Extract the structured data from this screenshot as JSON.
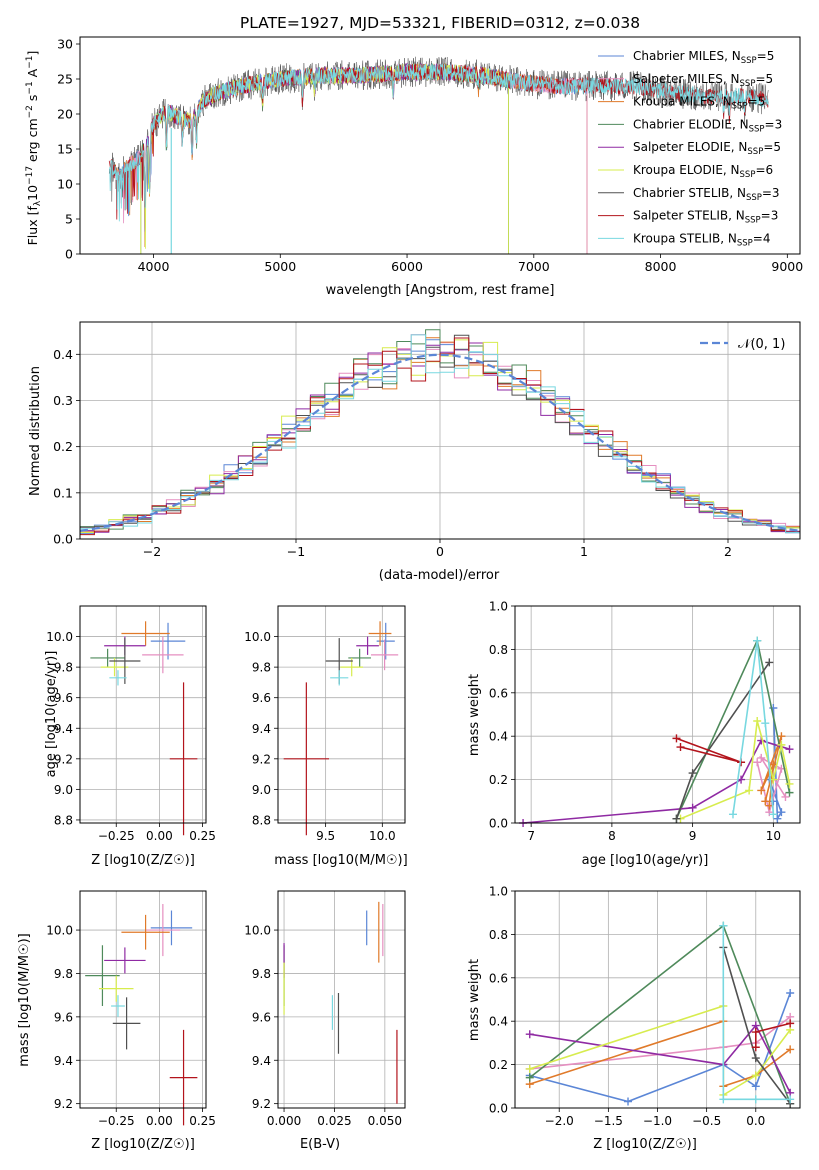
{
  "chart_data": [
    {
      "id": "spectrum",
      "type": "line",
      "title": "PLATE=1927, MJD=53321, FIBERID=0312, z=0.038",
      "xlabel": "wavelength [Angstrom, rest frame]",
      "ylabel": "Flux [f_λ10^-17 erg cm^-2 s^-1 A^-1]",
      "xlim": [
        3420,
        9100
      ],
      "ylim": [
        0,
        31
      ],
      "xticks": [
        4000,
        5000,
        6000,
        7000,
        8000,
        9000
      ],
      "yticks": [
        0,
        5,
        10,
        15,
        20,
        25,
        30
      ],
      "grid": false,
      "legend_position": "right",
      "continuum": {
        "x": [
          3670,
          3720,
          3800,
          3900,
          4000,
          4100,
          4200,
          4300,
          4400,
          4500,
          4700,
          5000,
          5300,
          5600,
          6000,
          6300,
          6600,
          6900,
          7200,
          7500,
          7800,
          8100,
          8400,
          8700,
          8850
        ],
        "y": [
          12.5,
          11.0,
          12.5,
          14.0,
          18.5,
          20.5,
          19.5,
          19.0,
          22.0,
          23.0,
          24.0,
          25.0,
          25.5,
          25.5,
          26.0,
          26.0,
          25.5,
          24.5,
          24.0,
          24.0,
          24.0,
          23.0,
          22.5,
          22.5,
          22.0
        ]
      },
      "series": [
        {
          "name": "Chabrier MILES, N_SSP=5",
          "color": "#5b86d6",
          "x_range": [
            3700,
            7420
          ]
        },
        {
          "name": "Salpeter MILES, N_SSP=5",
          "color": "#e58fc0",
          "x_range": [
            3700,
            7420
          ]
        },
        {
          "name": "Kroupa MILES, N_SSP=5",
          "color": "#e07a2a",
          "x_range": [
            3700,
            7420
          ]
        },
        {
          "name": "Chabrier ELODIE, N_SSP=3",
          "color": "#4f8a5b",
          "x_range": [
            3900,
            6800
          ]
        },
        {
          "name": "Salpeter ELODIE, N_SSP=5",
          "color": "#8f2aa3",
          "x_range": [
            3900,
            6800
          ]
        },
        {
          "name": "Kroupa ELODIE, N_SSP=6",
          "color": "#d7ec4e",
          "x_range": [
            3900,
            6800
          ]
        },
        {
          "name": "Chabrier STELIB, N_SSP=3",
          "color": "#505050",
          "x_range": [
            3650,
            8850
          ]
        },
        {
          "name": "Salpeter STELIB, N_SSP=3",
          "color": "#b3141c",
          "x_range": [
            3650,
            8850
          ]
        },
        {
          "name": "Kroupa STELIB, N_SSP=4",
          "color": "#78d8e0",
          "x_range": [
            3650,
            8850
          ]
        }
      ]
    },
    {
      "id": "residuals",
      "type": "histogram",
      "xlabel": "(data-model)/error",
      "ylabel": "Normed distribution",
      "xlim": [
        -2.5,
        2.5
      ],
      "ylim": [
        0,
        0.47
      ],
      "xticks": [
        -2,
        -1,
        0,
        1,
        2
      ],
      "yticks": [
        0.0,
        0.1,
        0.2,
        0.3,
        0.4
      ],
      "grid": true,
      "legend_position": "top-right",
      "gaussian_label": "𝒩(0, 1)",
      "bin_width": 0.1
    },
    {
      "id": "age-vs-Z",
      "type": "scatter",
      "xlabel": "Z [log10(Z/Z☉)]",
      "ylabel": "age  [log10(age/yr)]",
      "xlim": [
        -0.46,
        0.27
      ],
      "ylim": [
        8.78,
        10.2
      ],
      "xticks": [
        -0.25,
        0.0,
        0.25
      ],
      "yticks": [
        8.8,
        9.0,
        9.2,
        9.4,
        9.6,
        9.8,
        10.0
      ],
      "grid": true,
      "points": [
        {
          "x": 0.05,
          "y": 9.97,
          "dx": 0.1,
          "dy": 0.12,
          "color": "#5b86d6"
        },
        {
          "x": 0.02,
          "y": 9.88,
          "dx": 0.12,
          "dy": 0.12,
          "color": "#e58fc0"
        },
        {
          "x": -0.08,
          "y": 10.02,
          "dx": 0.14,
          "dy": 0.08,
          "color": "#e07a2a"
        },
        {
          "x": -0.3,
          "y": 9.86,
          "dx": 0.1,
          "dy": 0.06,
          "color": "#4f8a5b"
        },
        {
          "x": -0.2,
          "y": 9.94,
          "dx": 0.12,
          "dy": 0.06,
          "color": "#8f2aa3"
        },
        {
          "x": -0.26,
          "y": 9.8,
          "dx": 0.08,
          "dy": 0.06,
          "color": "#d7ec4e"
        },
        {
          "x": -0.2,
          "y": 9.84,
          "dx": 0.09,
          "dy": 0.15,
          "color": "#505050"
        },
        {
          "x": 0.14,
          "y": 9.2,
          "dx": 0.08,
          "dy": 0.5,
          "color": "#b3141c"
        },
        {
          "x": -0.24,
          "y": 9.73,
          "dx": 0.05,
          "dy": 0.05,
          "color": "#78d8e0"
        }
      ]
    },
    {
      "id": "age-vs-mass",
      "type": "scatter",
      "xlabel": "mass [log10(M/M☉)]",
      "ylabel": "",
      "xlim": [
        9.08,
        10.2
      ],
      "ylim": [
        8.78,
        10.2
      ],
      "xticks": [
        9.5,
        10.0
      ],
      "yticks": [
        8.8,
        9.0,
        9.2,
        9.4,
        9.6,
        9.8,
        10.0
      ],
      "grid": true,
      "points": [
        {
          "x": 10.03,
          "y": 9.97,
          "dx": 0.08,
          "dy": 0.12,
          "color": "#5b86d6"
        },
        {
          "x": 10.02,
          "y": 9.88,
          "dx": 0.12,
          "dy": 0.1,
          "color": "#e58fc0"
        },
        {
          "x": 9.98,
          "y": 10.02,
          "dx": 0.1,
          "dy": 0.08,
          "color": "#e07a2a"
        },
        {
          "x": 9.8,
          "y": 9.86,
          "dx": 0.1,
          "dy": 0.06,
          "color": "#4f8a5b"
        },
        {
          "x": 9.87,
          "y": 9.94,
          "dx": 0.1,
          "dy": 0.06,
          "color": "#8f2aa3"
        },
        {
          "x": 9.73,
          "y": 9.8,
          "dx": 0.1,
          "dy": 0.06,
          "color": "#d7ec4e"
        },
        {
          "x": 9.62,
          "y": 9.84,
          "dx": 0.12,
          "dy": 0.15,
          "color": "#505050"
        },
        {
          "x": 9.33,
          "y": 9.2,
          "dx": 0.2,
          "dy": 0.5,
          "color": "#b3141c"
        },
        {
          "x": 9.62,
          "y": 9.73,
          "dx": 0.08,
          "dy": 0.05,
          "color": "#78d8e0"
        }
      ]
    },
    {
      "id": "weight-vs-age",
      "type": "line",
      "xlabel": "age  [log10(age/yr)]",
      "ylabel": "mass weight",
      "xlim": [
        6.8,
        10.33
      ],
      "ylim": [
        0.0,
        1.0
      ],
      "xticks": [
        7,
        8,
        9,
        10
      ],
      "yticks": [
        0.0,
        0.2,
        0.4,
        0.6,
        0.8,
        1.0
      ],
      "grid": true,
      "series": [
        {
          "color": "#5b86d6",
          "x": [
            10.0,
            10.05,
            10.1,
            9.95,
            10.0
          ],
          "y": [
            0.53,
            0.02,
            0.05,
            0.2,
            0.1
          ]
        },
        {
          "color": "#e58fc0",
          "x": [
            9.8,
            9.95,
            10.1,
            9.85,
            10.15
          ],
          "y": [
            0.28,
            0.05,
            0.25,
            0.3,
            0.12
          ]
        },
        {
          "color": "#e07a2a",
          "x": [
            9.9,
            10.1,
            9.85,
            10.0,
            9.95
          ],
          "y": [
            0.1,
            0.4,
            0.15,
            0.27,
            0.08
          ]
        },
        {
          "color": "#4f8a5b",
          "x": [
            8.8,
            9.8,
            10.2
          ],
          "y": [
            0.02,
            0.84,
            0.14
          ]
        },
        {
          "color": "#8f2aa3",
          "x": [
            6.9,
            9.0,
            9.6,
            9.85,
            10.2
          ],
          "y": [
            0.0,
            0.07,
            0.2,
            0.38,
            0.34
          ]
        },
        {
          "color": "#d7ec4e",
          "x": [
            8.85,
            9.7,
            9.8,
            10.0,
            10.1,
            10.2
          ],
          "y": [
            0.02,
            0.15,
            0.47,
            0.2,
            0.36,
            0.18
          ]
        },
        {
          "color": "#505050",
          "x": [
            8.8,
            9.0,
            9.95
          ],
          "y": [
            0.02,
            0.23,
            0.74
          ]
        },
        {
          "color": "#b3141c",
          "x": [
            8.8,
            9.6,
            8.85
          ],
          "y": [
            0.39,
            0.28,
            0.35
          ]
        },
        {
          "color": "#78d8e0",
          "x": [
            9.5,
            9.8,
            9.9,
            10.0
          ],
          "y": [
            0.04,
            0.84,
            0.46,
            0.04
          ]
        }
      ]
    },
    {
      "id": "mass-vs-Z",
      "type": "scatter",
      "xlabel": "Z [log10(Z/Z☉)]",
      "ylabel": "mass [log10(M/M☉)]",
      "xlim": [
        -0.46,
        0.27
      ],
      "ylim": [
        9.18,
        10.18
      ],
      "xticks": [
        -0.25,
        0.0,
        0.25
      ],
      "yticks": [
        9.2,
        9.4,
        9.6,
        9.8,
        10.0
      ],
      "grid": true,
      "points": [
        {
          "x": 0.07,
          "y": 10.01,
          "dx": 0.12,
          "dy": 0.08,
          "color": "#5b86d6"
        },
        {
          "x": 0.02,
          "y": 10.0,
          "dx": 0.1,
          "dy": 0.12,
          "color": "#e58fc0"
        },
        {
          "x": -0.08,
          "y": 9.99,
          "dx": 0.14,
          "dy": 0.08,
          "color": "#e07a2a"
        },
        {
          "x": -0.33,
          "y": 9.79,
          "dx": 0.1,
          "dy": 0.14,
          "color": "#4f8a5b"
        },
        {
          "x": -0.2,
          "y": 9.86,
          "dx": 0.12,
          "dy": 0.06,
          "color": "#8f2aa3"
        },
        {
          "x": -0.25,
          "y": 9.73,
          "dx": 0.1,
          "dy": 0.06,
          "color": "#d7ec4e"
        },
        {
          "x": -0.19,
          "y": 9.57,
          "dx": 0.08,
          "dy": 0.12,
          "color": "#505050"
        },
        {
          "x": 0.14,
          "y": 9.32,
          "dx": 0.08,
          "dy": 0.22,
          "color": "#b3141c"
        },
        {
          "x": -0.24,
          "y": 9.65,
          "dx": 0.04,
          "dy": 0.05,
          "color": "#78d8e0"
        }
      ]
    },
    {
      "id": "mass-vs-ebv",
      "type": "scatter",
      "xlabel": "E(B-V)",
      "ylabel": "",
      "xlim": [
        -0.003,
        0.06
      ],
      "ylim": [
        9.18,
        10.18
      ],
      "xticks": [
        0.0,
        0.025,
        0.05
      ],
      "ytick_labels_x": [
        "0.000",
        "0.025",
        "0.050"
      ],
      "yticks": [
        9.2,
        9.4,
        9.6,
        9.8,
        10.0
      ],
      "grid": true,
      "points": [
        {
          "x": 0.041,
          "y": 10.01,
          "dx": 0,
          "dy": 0.08,
          "color": "#5b86d6"
        },
        {
          "x": 0.049,
          "y": 10.0,
          "dx": 0,
          "dy": 0.12,
          "color": "#e58fc0"
        },
        {
          "x": 0.047,
          "y": 9.99,
          "dx": 0,
          "dy": 0.14,
          "color": "#e07a2a"
        },
        {
          "x": 0.0,
          "y": 9.79,
          "dx": 0,
          "dy": 0.14,
          "color": "#4f8a5b"
        },
        {
          "x": 0.0,
          "y": 9.86,
          "dx": 0,
          "dy": 0.08,
          "color": "#8f2aa3"
        },
        {
          "x": 0.0,
          "y": 9.73,
          "dx": 0,
          "dy": 0.12,
          "color": "#d7ec4e"
        },
        {
          "x": 0.027,
          "y": 9.57,
          "dx": 0,
          "dy": 0.14,
          "color": "#505050"
        },
        {
          "x": 0.056,
          "y": 9.37,
          "dx": 0,
          "dy": 0.17,
          "color": "#b3141c"
        },
        {
          "x": 0.024,
          "y": 9.62,
          "dx": 0,
          "dy": 0.08,
          "color": "#78d8e0"
        }
      ]
    },
    {
      "id": "weight-vs-Z",
      "type": "line",
      "xlabel": "Z [log10(Z/Z☉)]",
      "ylabel": "mass weight",
      "xlim": [
        -2.45,
        0.45
      ],
      "ylim": [
        0.0,
        1.0
      ],
      "xticks": [
        -2.0,
        -1.5,
        -1.0,
        -0.5,
        0.0
      ],
      "yticks": [
        0.0,
        0.2,
        0.4,
        0.6,
        0.8,
        1.0
      ],
      "grid": true,
      "series": [
        {
          "color": "#5b86d6",
          "x": [
            -2.3,
            -1.3,
            -0.33,
            0.0,
            0.35
          ],
          "y": [
            0.15,
            0.03,
            0.2,
            0.1,
            0.53
          ]
        },
        {
          "color": "#e58fc0",
          "x": [
            -2.3,
            -0.33,
            0.0,
            0.35
          ],
          "y": [
            0.18,
            0.28,
            0.3,
            0.42
          ]
        },
        {
          "color": "#e07a2a",
          "x": [
            -2.3,
            -0.33,
            -0.33,
            0.0,
            0.35
          ],
          "y": [
            0.11,
            0.4,
            0.1,
            0.15,
            0.27
          ]
        },
        {
          "color": "#4f8a5b",
          "x": [
            -2.3,
            -0.33,
            0.35
          ],
          "y": [
            0.14,
            0.84,
            0.02
          ]
        },
        {
          "color": "#8f2aa3",
          "x": [
            -2.3,
            -0.33,
            0.0,
            0.35
          ],
          "y": [
            0.34,
            0.2,
            0.38,
            0.07
          ]
        },
        {
          "color": "#d7ec4e",
          "x": [
            -2.3,
            -0.33,
            -0.33,
            0.0,
            0.35
          ],
          "y": [
            0.18,
            0.47,
            0.06,
            0.15,
            0.36
          ]
        },
        {
          "color": "#505050",
          "x": [
            -0.33,
            0.0,
            0.35
          ],
          "y": [
            0.74,
            0.23,
            0.02
          ]
        },
        {
          "color": "#b3141c",
          "x": [
            0.0,
            0.0,
            0.35
          ],
          "y": [
            0.28,
            0.35,
            0.39
          ]
        },
        {
          "color": "#78d8e0",
          "x": [
            -0.33,
            -0.33,
            0.0,
            0.35
          ],
          "y": [
            0.84,
            0.04,
            0.04,
            0.04
          ]
        }
      ]
    }
  ]
}
